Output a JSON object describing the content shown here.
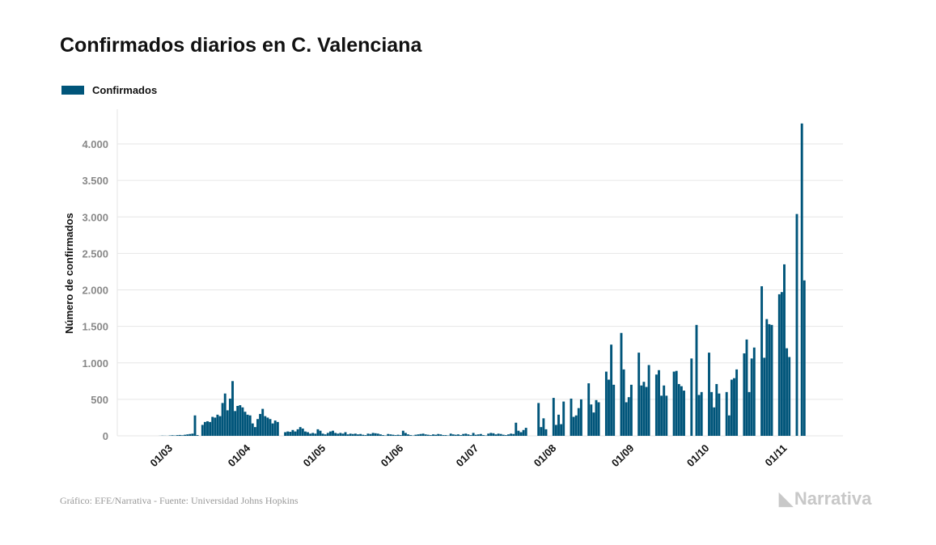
{
  "title": "Confirmados diarios en C. Valenciana",
  "source": "Gráfico: EFE/Narrativa - Fuente: Universidad Johns Hopkins",
  "logo": "Narrativa",
  "colors": {
    "bar": "#00557a",
    "grid": "#e6e6e6",
    "logo": "#c8c8c8"
  },
  "chart_data": {
    "type": "bar",
    "title": "Confirmados diarios en C. Valenciana",
    "legend": {
      "entries": [
        "Confirmados"
      ],
      "position": "top-left"
    },
    "ylabel": "Número de confirmados",
    "xlabel": "",
    "ylim": [
      0,
      4500
    ],
    "grid": true,
    "y_ticks": [
      {
        "value": 0,
        "label": "0"
      },
      {
        "value": 500,
        "label": "500"
      },
      {
        "value": 1000,
        "label": "1.000"
      },
      {
        "value": 1500,
        "label": "1.500"
      },
      {
        "value": 2000,
        "label": "2.000"
      },
      {
        "value": 2500,
        "label": "2.500"
      },
      {
        "value": 3000,
        "label": "3.000"
      },
      {
        "value": 3500,
        "label": "3.500"
      },
      {
        "value": 4000,
        "label": "4.000"
      }
    ],
    "x_ticks": [
      "01/03",
      "01/04",
      "01/05",
      "01/06",
      "01/07",
      "01/08",
      "01/09",
      "01/10",
      "01/11"
    ],
    "series": [
      {
        "name": "Confirmados",
        "values": [
          0,
          1,
          3,
          2,
          1,
          5,
          8,
          5,
          10,
          12,
          8,
          15,
          20,
          25,
          30,
          280,
          10,
          0,
          150,
          190,
          200,
          190,
          260,
          250,
          290,
          270,
          450,
          580,
          350,
          510,
          750,
          340,
          410,
          420,
          390,
          330,
          290,
          280,
          170,
          120,
          230,
          300,
          370,
          270,
          250,
          230,
          170,
          210,
          190,
          0,
          0,
          50,
          60,
          55,
          80,
          60,
          90,
          120,
          100,
          60,
          50,
          30,
          40,
          30,
          90,
          70,
          30,
          20,
          40,
          60,
          70,
          40,
          30,
          40,
          30,
          50,
          20,
          30,
          25,
          30,
          20,
          25,
          15,
          10,
          30,
          25,
          40,
          35,
          30,
          20,
          10,
          5,
          25,
          20,
          15,
          10,
          15,
          10,
          70,
          40,
          20,
          10,
          5,
          15,
          20,
          25,
          30,
          20,
          15,
          10,
          20,
          15,
          25,
          20,
          10,
          10,
          5,
          30,
          20,
          15,
          20,
          10,
          25,
          30,
          20,
          10,
          40,
          15,
          20,
          25,
          10,
          5,
          30,
          40,
          35,
          20,
          30,
          25,
          15,
          10,
          20,
          30,
          25,
          180,
          70,
          50,
          80,
          110,
          0,
          0,
          0,
          0,
          450,
          120,
          240,
          90,
          0,
          0,
          520,
          150,
          290,
          160,
          470,
          0,
          0,
          510,
          260,
          280,
          380,
          500,
          0,
          0,
          720,
          430,
          320,
          490,
          460,
          0,
          0,
          880,
          770,
          1250,
          700,
          0,
          0,
          1410,
          910,
          460,
          530,
          700,
          0,
          0,
          1140,
          690,
          740,
          670,
          970,
          0,
          0,
          840,
          900,
          550,
          690,
          550,
          0,
          0,
          880,
          890,
          710,
          680,
          620,
          0,
          0,
          1060,
          0,
          1520,
          560,
          600,
          0,
          0,
          1140,
          600,
          390,
          710,
          580,
          0,
          0,
          600,
          280,
          770,
          790,
          910,
          0,
          0,
          1130,
          1320,
          600,
          1060,
          1210,
          0,
          0,
          2050,
          1070,
          1600,
          1530,
          1520,
          0,
          0,
          1940,
          1970,
          2350,
          1200,
          1080,
          0,
          0,
          3040,
          0,
          4280,
          2130
        ]
      }
    ]
  }
}
